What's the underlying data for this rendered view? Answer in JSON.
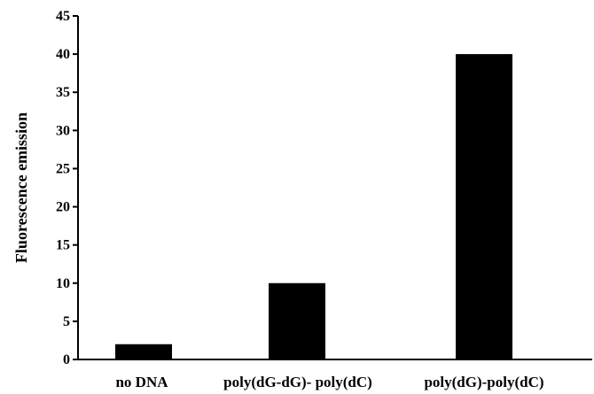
{
  "chart_data": {
    "type": "bar",
    "title": "",
    "xlabel": "",
    "ylabel": "Fluorescence emission",
    "categories": [
      "no DNA",
      "poly(dG-dG)- poly(dC)",
      "poly(dG)-poly(dC)"
    ],
    "values": [
      2,
      10,
      40
    ],
    "ylim": [
      0,
      45
    ],
    "yticks": [
      0,
      5,
      10,
      15,
      20,
      25,
      30,
      35,
      40,
      45
    ],
    "grid": false,
    "bar_color": "#000000"
  }
}
